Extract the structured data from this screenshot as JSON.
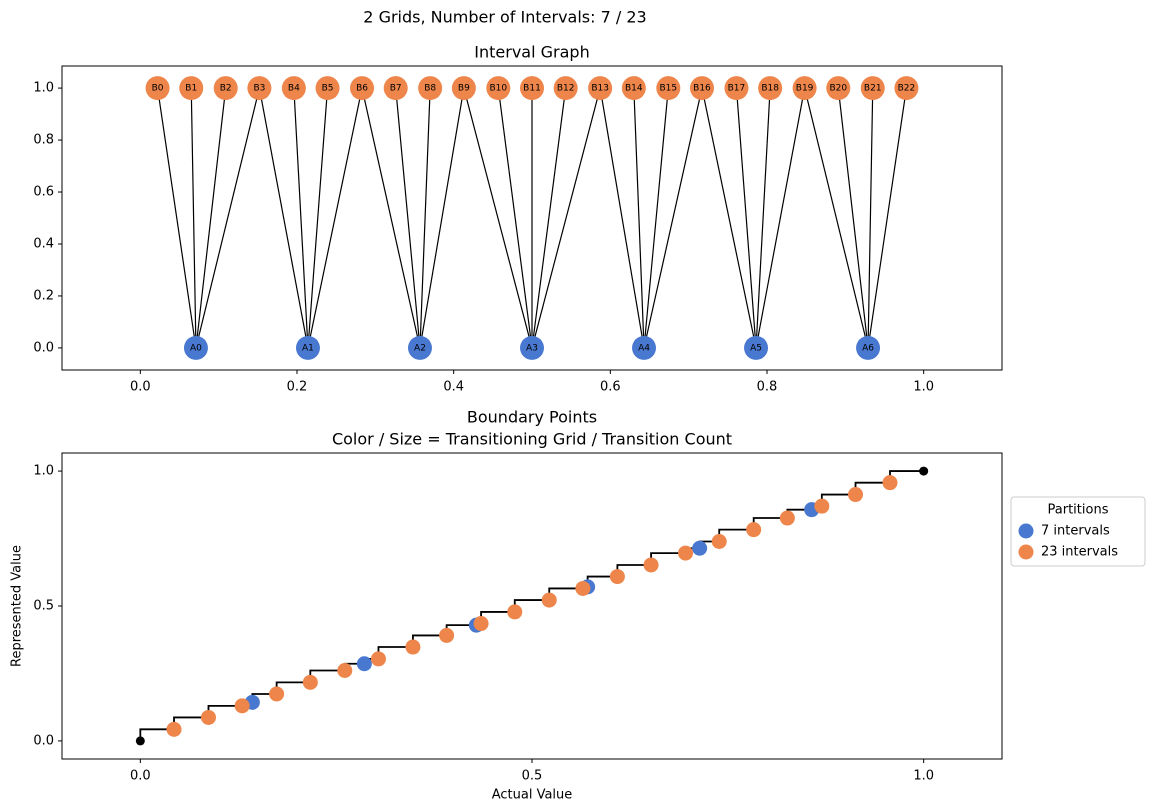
{
  "title": "2 Grids, Number of Intervals: 7 / 23",
  "chart_data": [
    {
      "type": "graph",
      "title": "Interval Graph",
      "xlim": [
        -0.1,
        1.1
      ],
      "ylim": [
        -0.085,
        1.085
      ],
      "xticks": [
        {
          "value": 0,
          "label": "0.0"
        },
        0.2,
        0.4,
        0.6,
        0.8,
        {
          "value": 1,
          "label": "1.0"
        }
      ],
      "yticks": [
        {
          "value": 0,
          "label": "0.0"
        },
        0.2,
        0.4,
        0.6,
        0.8,
        {
          "value": 1,
          "label": "1.0"
        }
      ],
      "series": [
        {
          "color": "#4878cf",
          "y": 0,
          "labels": [
            "A0",
            "A1",
            "A2",
            "A3",
            "A4",
            "A5",
            "A6"
          ],
          "x": [
            0.071,
            0.214,
            0.357,
            0.5,
            0.643,
            0.786,
            0.929
          ]
        },
        {
          "color": "#ee854a",
          "y": 1,
          "labels": [
            "B0",
            "B1",
            "B2",
            "B3",
            "B4",
            "B5",
            "B6",
            "B7",
            "B8",
            "B9",
            "B10",
            "B11",
            "B12",
            "B13",
            "B14",
            "B15",
            "B16",
            "B17",
            "B18",
            "B19",
            "B20",
            "B21",
            "B22"
          ],
          "x": [
            0.022,
            0.065,
            0.109,
            0.152,
            0.196,
            0.239,
            0.283,
            0.326,
            0.37,
            0.413,
            0.457,
            0.5,
            0.543,
            0.587,
            0.63,
            0.674,
            0.717,
            0.761,
            0.804,
            0.848,
            0.891,
            0.935,
            0.978
          ]
        }
      ],
      "edges": [
        [
          0,
          0
        ],
        [
          0,
          1
        ],
        [
          0,
          2
        ],
        [
          0,
          3
        ],
        [
          1,
          3
        ],
        [
          1,
          4
        ],
        [
          1,
          5
        ],
        [
          1,
          6
        ],
        [
          2,
          6
        ],
        [
          2,
          7
        ],
        [
          2,
          8
        ],
        [
          2,
          9
        ],
        [
          3,
          9
        ],
        [
          3,
          10
        ],
        [
          3,
          11
        ],
        [
          3,
          12
        ],
        [
          3,
          13
        ],
        [
          4,
          13
        ],
        [
          4,
          14
        ],
        [
          4,
          15
        ],
        [
          4,
          16
        ],
        [
          5,
          16
        ],
        [
          5,
          17
        ],
        [
          5,
          18
        ],
        [
          5,
          19
        ],
        [
          6,
          19
        ],
        [
          6,
          20
        ],
        [
          6,
          21
        ],
        [
          6,
          22
        ]
      ]
    },
    {
      "type": "scatter",
      "title": "Boundary Points",
      "subtitle": "Color / Size = Transitioning Grid / Transition Count",
      "xlabel": "Actual Value",
      "ylabel": "Represented Value",
      "xlim": [
        -0.1,
        1.1
      ],
      "ylim": [
        -0.067,
        1.067
      ],
      "xticks": [
        {
          "value": 0,
          "label": "0.0"
        },
        0.5,
        {
          "value": 1,
          "label": "1.0"
        }
      ],
      "yticks": [
        {
          "value": 0,
          "label": "0.0"
        },
        0.5,
        {
          "value": 1,
          "label": "1.0"
        }
      ],
      "legend": {
        "title": "Partitions",
        "position": "right"
      },
      "step": {
        "color": "#000000",
        "endpoint_color": "#000000",
        "x": [
          0,
          0.043,
          0.087,
          0.13,
          0.143,
          0.174,
          0.217,
          0.261,
          0.286,
          0.304,
          0.348,
          0.391,
          0.429,
          0.435,
          0.478,
          0.522,
          0.565,
          0.571,
          0.609,
          0.652,
          0.696,
          0.714,
          0.739,
          0.783,
          0.826,
          0.857,
          0.87,
          0.913,
          0.957,
          1
        ],
        "y": [
          0,
          0.043,
          0.087,
          0.13,
          0.143,
          0.174,
          0.217,
          0.261,
          0.286,
          0.304,
          0.348,
          0.391,
          0.429,
          0.435,
          0.478,
          0.522,
          0.565,
          0.571,
          0.609,
          0.652,
          0.696,
          0.714,
          0.739,
          0.783,
          0.826,
          0.857,
          0.87,
          0.913,
          0.957,
          1
        ]
      },
      "series": [
        {
          "name": "7 intervals",
          "color": "#4878cf",
          "x": [
            0.143,
            0.286,
            0.429,
            0.571,
            0.714,
            0.857
          ],
          "values": [
            0.143,
            0.286,
            0.429,
            0.571,
            0.714,
            0.857
          ]
        },
        {
          "name": "23 intervals",
          "color": "#ee854a",
          "x": [
            0.043,
            0.087,
            0.13,
            0.174,
            0.217,
            0.261,
            0.304,
            0.348,
            0.391,
            0.435,
            0.478,
            0.522,
            0.565,
            0.609,
            0.652,
            0.696,
            0.739,
            0.783,
            0.826,
            0.87,
            0.913,
            0.957
          ],
          "values": [
            0.043,
            0.087,
            0.13,
            0.174,
            0.217,
            0.261,
            0.304,
            0.348,
            0.391,
            0.435,
            0.478,
            0.522,
            0.565,
            0.609,
            0.652,
            0.696,
            0.739,
            0.783,
            0.826,
            0.87,
            0.913,
            0.957
          ]
        }
      ]
    }
  ]
}
